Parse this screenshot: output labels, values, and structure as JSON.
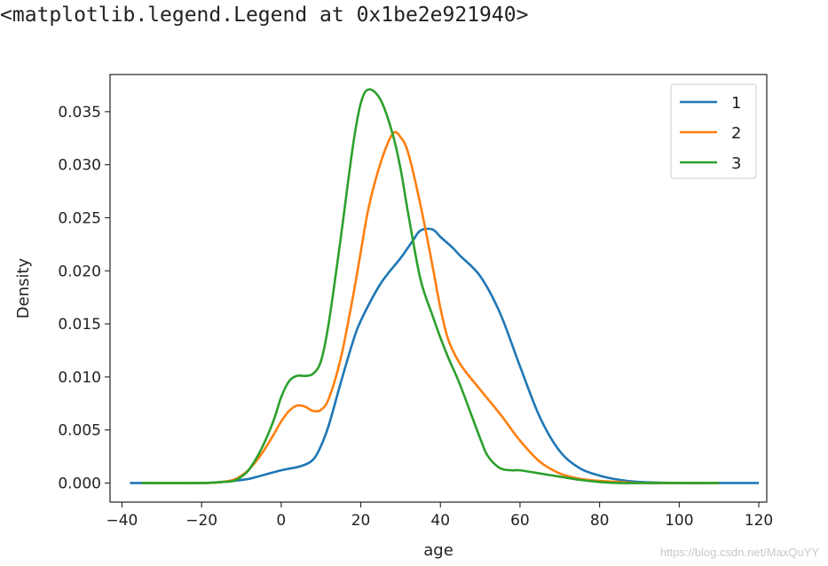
{
  "output_text": "<matplotlib.legend.Legend at 0x1be2e921940>",
  "watermark": "https://blog.csdn.net/MaxQuYY",
  "chart_data": {
    "type": "line",
    "title": "",
    "xlabel": "age",
    "ylabel": "Density",
    "xlim": [
      -43,
      122
    ],
    "ylim": [
      -0.0018,
      0.0385
    ],
    "xticks": [
      -40,
      -20,
      0,
      20,
      40,
      60,
      80,
      100,
      120
    ],
    "xtick_labels": [
      "−40",
      "−20",
      "0",
      "20",
      "40",
      "60",
      "80",
      "100",
      "120"
    ],
    "yticks": [
      0.0,
      0.005,
      0.01,
      0.015,
      0.02,
      0.025,
      0.03,
      0.035
    ],
    "ytick_labels": [
      "0.000",
      "0.005",
      "0.010",
      "0.015",
      "0.020",
      "0.025",
      "0.030",
      "0.035"
    ],
    "grid": false,
    "legend_position": "top-right",
    "series": [
      {
        "name": "1",
        "color": "#1f77b4",
        "x": [
          -38,
          -20,
          -15,
          -12,
          -8,
          -5,
          0,
          5,
          8,
          10,
          12,
          15,
          18,
          20,
          25,
          30,
          33,
          35,
          38,
          40,
          43,
          45,
          50,
          55,
          60,
          65,
          70,
          75,
          80,
          85,
          90,
          100,
          110,
          120
        ],
        "y": [
          0.0,
          0.0,
          0.0001,
          0.0002,
          0.0004,
          0.0007,
          0.0012,
          0.0016,
          0.0022,
          0.0035,
          0.0055,
          0.0095,
          0.0133,
          0.0153,
          0.0188,
          0.0212,
          0.0228,
          0.0238,
          0.0239,
          0.0232,
          0.0222,
          0.0214,
          0.0195,
          0.016,
          0.011,
          0.0062,
          0.003,
          0.0014,
          0.0007,
          0.0003,
          0.0001,
          0.0,
          0.0,
          0.0
        ]
      },
      {
        "name": "2",
        "color": "#ff7f0e",
        "x": [
          -35,
          -20,
          -15,
          -12,
          -10,
          -8,
          -5,
          -2,
          0,
          2,
          4,
          6,
          8,
          10,
          12,
          15,
          18,
          20,
          22,
          25,
          28,
          30,
          32,
          35,
          38,
          40,
          42,
          45,
          50,
          55,
          60,
          65,
          70,
          75,
          80,
          85,
          90,
          100,
          110
        ],
        "y": [
          0.0,
          0.0,
          0.0001,
          0.0003,
          0.0007,
          0.0013,
          0.0027,
          0.0045,
          0.0058,
          0.0068,
          0.0073,
          0.0072,
          0.0068,
          0.0069,
          0.008,
          0.0118,
          0.0175,
          0.0218,
          0.026,
          0.0302,
          0.0329,
          0.0326,
          0.031,
          0.0262,
          0.0205,
          0.0165,
          0.0135,
          0.0112,
          0.0088,
          0.0065,
          0.004,
          0.002,
          0.0009,
          0.0004,
          0.0002,
          0.0001,
          0.0,
          0.0,
          0.0
        ]
      },
      {
        "name": "3",
        "color": "#2ca02c",
        "x": [
          -35,
          -20,
          -15,
          -12,
          -10,
          -8,
          -5,
          -2,
          0,
          2,
          4,
          6,
          8,
          10,
          12,
          15,
          18,
          20,
          22,
          25,
          28,
          30,
          32,
          35,
          38,
          40,
          42,
          45,
          50,
          52,
          55,
          58,
          60,
          65,
          70,
          75,
          80,
          85,
          90,
          100,
          110
        ],
        "y": [
          0.0,
          0.0,
          0.0001,
          0.0002,
          0.0006,
          0.0013,
          0.0032,
          0.0058,
          0.0081,
          0.0096,
          0.0101,
          0.0101,
          0.0103,
          0.0115,
          0.0152,
          0.0232,
          0.0317,
          0.0358,
          0.0371,
          0.0361,
          0.0329,
          0.0296,
          0.0252,
          0.0192,
          0.0158,
          0.0137,
          0.0118,
          0.0092,
          0.0042,
          0.0025,
          0.0014,
          0.0012,
          0.0012,
          0.0009,
          0.0006,
          0.0003,
          0.0001,
          0.0,
          0.0,
          0.0,
          0.0
        ]
      }
    ]
  }
}
